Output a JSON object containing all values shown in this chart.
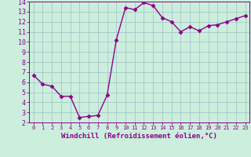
{
  "x": [
    0,
    1,
    2,
    3,
    4,
    5,
    6,
    7,
    8,
    9,
    10,
    11,
    12,
    13,
    14,
    15,
    16,
    17,
    18,
    19,
    20,
    21,
    22,
    23
  ],
  "y": [
    6.7,
    5.8,
    5.6,
    4.6,
    4.6,
    2.5,
    2.6,
    2.7,
    4.7,
    10.2,
    13.4,
    13.2,
    13.9,
    13.6,
    12.4,
    12.0,
    11.0,
    11.5,
    11.1,
    11.6,
    11.7,
    12.0,
    12.3,
    12.6
  ],
  "line_color": "#8B008B",
  "marker": "D",
  "marker_size": 2.5,
  "bg_color": "#cceedd",
  "grid_color": "#aacccc",
  "xlabel": "Windchill (Refroidissement éolien,°C)",
  "xlabel_color": "#8B008B",
  "ylim": [
    2,
    14
  ],
  "xlim": [
    -0.5,
    23.5
  ],
  "yticks": [
    2,
    3,
    4,
    5,
    6,
    7,
    8,
    9,
    10,
    11,
    12,
    13,
    14
  ],
  "xticks": [
    0,
    1,
    2,
    3,
    4,
    5,
    6,
    7,
    8,
    9,
    10,
    11,
    12,
    13,
    14,
    15,
    16,
    17,
    18,
    19,
    20,
    21,
    22,
    23
  ],
  "tick_color": "#8B008B",
  "spine_color": "#8B008B",
  "line_width": 1.0,
  "xlabel_fontsize": 6.5,
  "tick_fontsize_x": 5.0,
  "tick_fontsize_y": 6.0
}
